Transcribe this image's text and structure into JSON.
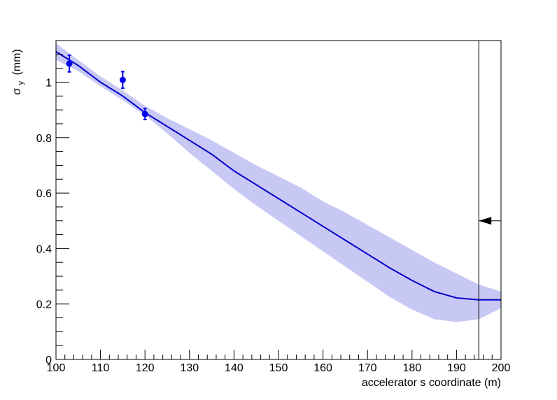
{
  "chart_data": {
    "type": "line",
    "xlabel": "accelerator s coordinate (m)",
    "ylabel": {
      "symbol": "σ",
      "subscript": "y",
      "unit": "(mm)"
    },
    "xlim": [
      100,
      200
    ],
    "ylim": [
      0,
      1.15
    ],
    "x_ticks": [
      100,
      110,
      120,
      130,
      140,
      150,
      160,
      170,
      180,
      190,
      200
    ],
    "x_tick_labels": [
      "100",
      "110",
      "120",
      "130",
      "140",
      "150",
      "160",
      "170",
      "180",
      "190",
      "200"
    ],
    "y_ticks": [
      0,
      0.2,
      0.4,
      0.6,
      0.8,
      1
    ],
    "y_tick_labels": [
      "0",
      "0.2",
      "0.4",
      "0.6",
      "0.8",
      "1"
    ],
    "grid": false,
    "colors": {
      "line": "#0000cc",
      "band": "#c8c8f5",
      "points": "#0000ee",
      "frame": "#000000"
    },
    "series": [
      {
        "kind": "fit_curve",
        "x": [
          100,
          105,
          110,
          115,
          120,
          125,
          130,
          135,
          140,
          145,
          150,
          155,
          160,
          165,
          170,
          175,
          180,
          185,
          190,
          195,
          200
        ],
        "y": [
          1.11,
          1.06,
          1.0,
          0.95,
          0.89,
          0.84,
          0.79,
          0.74,
          0.68,
          0.63,
          0.58,
          0.53,
          0.48,
          0.43,
          0.38,
          0.33,
          0.285,
          0.245,
          0.222,
          0.215,
          0.215
        ],
        "band_upper": [
          1.14,
          1.08,
          1.02,
          0.97,
          0.915,
          0.87,
          0.83,
          0.79,
          0.745,
          0.7,
          0.66,
          0.62,
          0.57,
          0.53,
          0.485,
          0.44,
          0.395,
          0.35,
          0.31,
          0.27,
          0.245
        ],
        "band_lower": [
          1.08,
          1.04,
          0.985,
          0.935,
          0.88,
          0.815,
          0.745,
          0.68,
          0.615,
          0.555,
          0.5,
          0.445,
          0.39,
          0.335,
          0.28,
          0.225,
          0.18,
          0.145,
          0.135,
          0.145,
          0.185
        ]
      },
      {
        "kind": "measured_points",
        "x": [
          103,
          115,
          120
        ],
        "y": [
          1.067,
          1.008,
          0.885
        ],
        "err": [
          0.03,
          0.03,
          0.02
        ]
      }
    ],
    "annotations": [
      {
        "kind": "vertical_marker",
        "x": 195
      },
      {
        "kind": "arrow_marker",
        "y": 0.5,
        "from_x": 200,
        "to_x": 195,
        "direction": "left"
      }
    ]
  }
}
